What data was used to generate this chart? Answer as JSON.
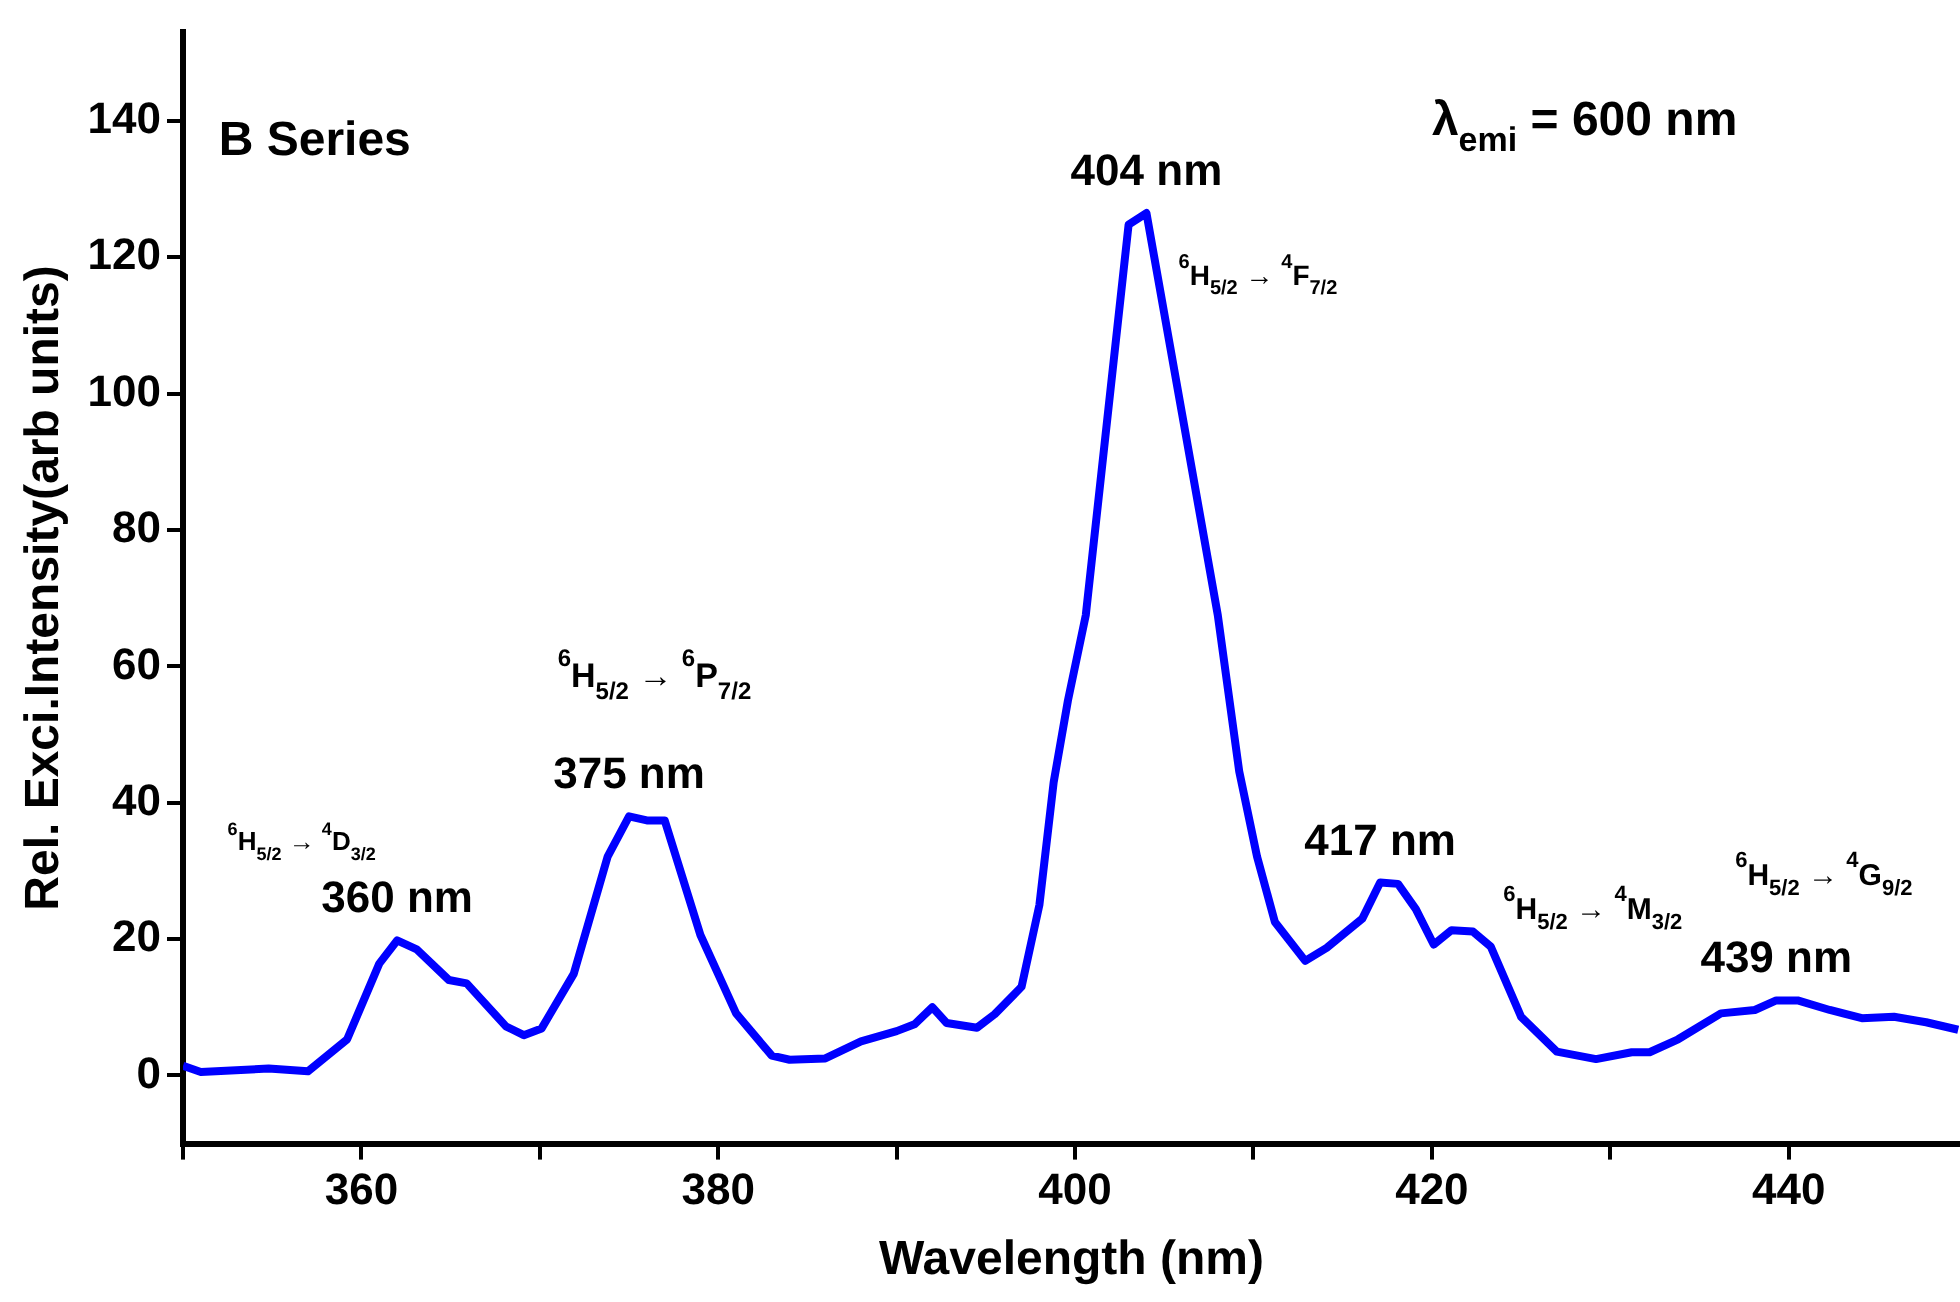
{
  "chart_data": {
    "type": "line",
    "title": "B Series",
    "xlabel": "Wavelength (nm)",
    "ylabel": "Rel. Exci.Intensity(arb units)",
    "x": [
      350,
      351,
      354.8,
      357,
      359.2,
      361,
      362,
      363.1,
      364.9,
      365.9,
      368.1,
      369.1,
      370.1,
      371.9,
      373.8,
      375,
      376,
      377,
      379,
      381,
      383,
      384,
      386,
      388,
      390,
      391,
      392,
      392.8,
      394.5,
      395.5,
      397,
      398,
      398.8,
      399.6,
      400.6,
      403,
      404,
      406,
      408,
      409.2,
      410.2,
      411.2,
      412.9,
      414.1,
      416.1,
      417.1,
      418.1,
      419.1,
      420.1,
      421.1,
      422.3,
      423.3,
      425,
      427,
      429.2,
      431.2,
      432.2,
      433.8,
      436.2,
      438.1,
      439.3,
      440.5,
      442.3,
      444.1,
      445.9,
      447.7,
      449.5
    ],
    "series": [
      {
        "color": "#0000ff",
        "values": [
          1.4,
          0.5,
          1,
          0.6,
          5.3,
          16.4,
          19.8,
          18.5,
          14,
          13.5,
          7.2,
          5.9,
          6.9,
          14.9,
          32.1,
          38,
          37.4,
          37.4,
          20.6,
          9.1,
          2.9,
          2.3,
          2.5,
          5,
          6.5,
          7.5,
          10,
          7.7,
          7,
          9,
          13,
          25,
          43,
          55,
          67.5,
          124.8,
          126.5,
          97,
          67.5,
          44.6,
          32.1,
          22.5,
          16.8,
          18.7,
          23,
          28.3,
          28.1,
          24.4,
          19.2,
          21.3,
          21.1,
          18.9,
          8.6,
          3.5,
          2.4,
          3.4,
          3.4,
          5.3,
          9.1,
          9.6,
          11,
          11,
          9.6,
          8.4,
          8.6,
          7.8,
          6.7
        ]
      }
    ],
    "xlim": [
      350,
      449.6
    ],
    "ylim": [
      -10,
      153
    ],
    "xticks": [
      {
        "value": 350,
        "label": null
      },
      360,
      {
        "value": 370,
        "label": null
      },
      380,
      {
        "value": 390,
        "label": null
      },
      400,
      {
        "value": 410,
        "label": null
      },
      420,
      {
        "value": 430,
        "label": null
      },
      440
    ],
    "yticks": [
      0,
      20,
      40,
      60,
      80,
      100,
      120,
      140
    ],
    "grid": false,
    "legend": false,
    "marker": "none",
    "line_style": "solid",
    "annotations": [
      "λ$_{emi}$ = 600 nm",
      {
        "text": "360 nm",
        "x": 362,
        "y": 19.8
      },
      {
        "text": "375 nm",
        "x": 375,
        "y": 38
      },
      {
        "text": "404 nm",
        "x": 404,
        "y": 126.5
      },
      {
        "text": "417 nm",
        "x": 417.1,
        "y": 28.3
      },
      {
        "text": "439 nm",
        "x": 439.3,
        "y": 11
      },
      "$^{6}$H$_{5/2}$ → $^{4}$D$_{3/2}$",
      "$^{6}$H$_{5/2}$ → $^{6}$P$_{7/2}$",
      "$^{6}$H$_{5/2}$ → $^{4}$F$_{7/2}$",
      "$^{6}$H$_{5/2}$ → $^{4}$M$_{3/2}$",
      "$^{6}$H$_{5/2}$ → $^{4}$G$_{9/2}$"
    ]
  }
}
